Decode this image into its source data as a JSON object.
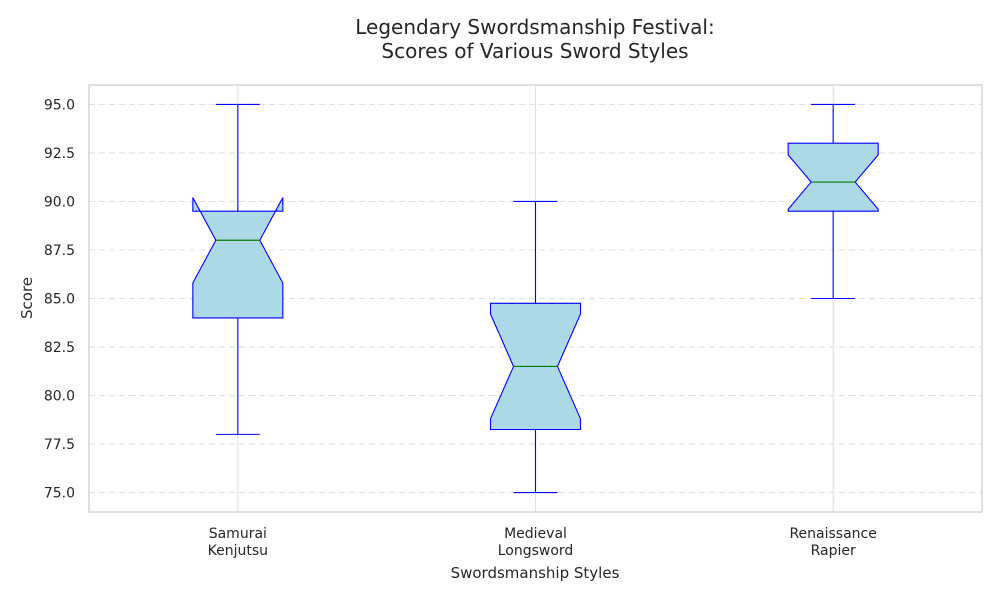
{
  "chart_data": {
    "type": "box",
    "title": [
      "Legendary Swordsmanship Festival:",
      "Scores of Various Sword Styles"
    ],
    "xlabel": "Swordsmanship Styles",
    "ylabel": "Score",
    "ylim": [
      74,
      96
    ],
    "yticks": [
      75.0,
      77.5,
      80.0,
      82.5,
      85.0,
      87.5,
      90.0,
      92.5,
      95.0
    ],
    "ytick_labels": [
      "75.0",
      "77.5",
      "80.0",
      "82.5",
      "85.0",
      "87.5",
      "90.0",
      "92.5",
      "95.0"
    ],
    "grid": "y dashed",
    "notched": true,
    "colors": {
      "box_fill": "#add8e6",
      "box_edge": "#0000ff",
      "median": "#008000",
      "grid": "#dddddd",
      "frame": "#cccccc"
    },
    "categories": [
      [
        "Samurai",
        "Kenjutsu"
      ],
      [
        "Medieval",
        "Longsword"
      ],
      [
        "Renaissance",
        "Rapier"
      ]
    ],
    "boxes": [
      {
        "min": 78,
        "q1": 84.0,
        "median": 88.0,
        "q3": 89.5,
        "max": 95,
        "notch_low": 85.8,
        "notch_high": 90.2
      },
      {
        "min": 75,
        "q1": 78.25,
        "median": 81.5,
        "q3": 84.75,
        "max": 90,
        "notch_low": 78.8,
        "notch_high": 84.2
      },
      {
        "min": 85,
        "q1": 89.5,
        "median": 91.0,
        "q3": 93.0,
        "max": 95,
        "notch_low": 89.6,
        "notch_high": 92.4
      }
    ]
  }
}
